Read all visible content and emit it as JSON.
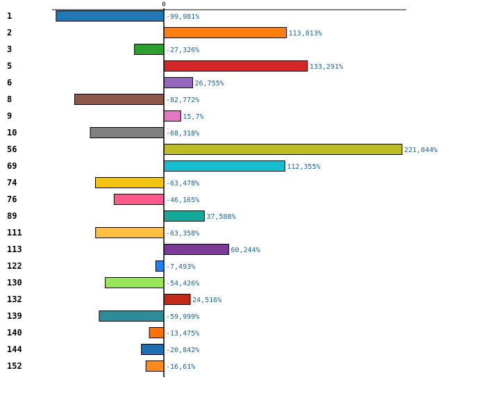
{
  "chart_data": {
    "type": "bar",
    "orientation": "horizontal",
    "title": "",
    "xlabel": "",
    "ylabel": "",
    "zero_tick_label": "0",
    "value_suffix": "%",
    "decimal_separator": ",",
    "xlim": [
      -100,
      221.044
    ],
    "categories": [
      "1",
      "2",
      "3",
      "5",
      "6",
      "8",
      "9",
      "10",
      "56",
      "69",
      "74",
      "76",
      "89",
      "111",
      "113",
      "122",
      "130",
      "132",
      "139",
      "140",
      "144",
      "152"
    ],
    "values": [
      -99.981,
      113.813,
      -27.326,
      133.291,
      26.755,
      -82.772,
      15.7,
      -68.318,
      221.044,
      112.355,
      -63.478,
      -46.165,
      37.588,
      -63.358,
      60.244,
      -7.493,
      -54.426,
      24.516,
      -59.999,
      -13.475,
      -20.842,
      -16.61
    ],
    "value_labels": [
      "-99,981%",
      "113,813%",
      "-27,326%",
      "133,291%",
      "26,755%",
      "-82,772%",
      "15,7%",
      "-68,318%",
      "221,044%",
      "112,355%",
      "-63,478%",
      "-46,165%",
      "37,588%",
      "-63,358%",
      "60,244%",
      "-7,493%",
      "-54,426%",
      "24,516%",
      "-59,999%",
      "-13,475%",
      "-20,842%",
      "-16,61%"
    ],
    "colors": [
      "#1f77b4",
      "#ff7f0e",
      "#2ca02c",
      "#d62728",
      "#9467bd",
      "#8c564b",
      "#e377c2",
      "#7f7f7f",
      "#bcbd22",
      "#17becf",
      "#f2c40f",
      "#ff5a8c",
      "#14a99b",
      "#ffbf40",
      "#7a3a96",
      "#1a80ff",
      "#99e65a",
      "#c42a1a",
      "#2e8c99",
      "#ff700a",
      "#1f6eb4",
      "#ff8a1e"
    ]
  }
}
